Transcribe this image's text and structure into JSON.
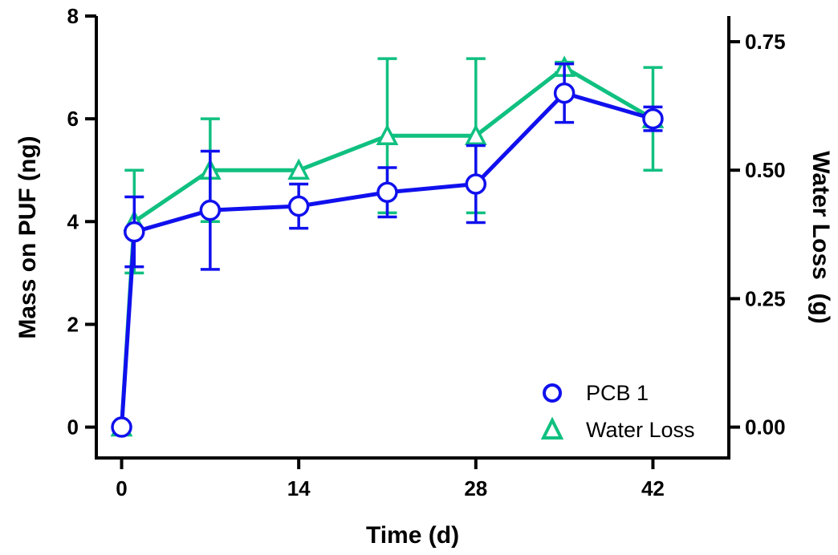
{
  "chart_data": {
    "type": "line",
    "xlabel": "Time (d)",
    "ylabel": "Mass on PUF (ng)",
    "y2label": "Water Loss  (g)",
    "xlim": [
      -2,
      48
    ],
    "ylim": [
      -0.6,
      8
    ],
    "y2lim": [
      -0.06,
      0.8
    ],
    "x_ticks": [
      0,
      14,
      28,
      42
    ],
    "x_tick_labels": [
      "0",
      "14",
      "28",
      "42"
    ],
    "y_ticks": [
      0,
      2,
      4,
      6,
      8
    ],
    "y_tick_labels": [
      "0",
      "2",
      "4",
      "6",
      "8"
    ],
    "y2_ticks": [
      0,
      0.25,
      0.5,
      0.75
    ],
    "y2_tick_labels": [
      "0.00",
      "0.25",
      "0.50",
      "0.75"
    ],
    "grid": false,
    "legend_position": "bottom-right",
    "series": [
      {
        "name": "PCB 1",
        "axis": "left",
        "marker": "circle",
        "color": "#1010ee",
        "x": [
          0,
          1,
          7,
          14,
          21,
          28,
          35,
          42
        ],
        "y": [
          0,
          3.8,
          4.22,
          4.3,
          4.57,
          4.73,
          6.5,
          6.0
        ],
        "error": [
          0,
          0.68,
          1.15,
          0.43,
          0.48,
          0.75,
          0.57,
          0.23
        ]
      },
      {
        "name": "Water Loss",
        "axis": "right",
        "marker": "triangle",
        "color": "#10c080",
        "x": [
          0,
          1,
          7,
          14,
          21,
          28,
          35,
          42
        ],
        "y": [
          0,
          0.4,
          0.5,
          0.5,
          0.567,
          0.567,
          0.7,
          0.6
        ],
        "error": [
          0,
          0.1,
          0.1,
          0,
          0.15,
          0.15,
          0.01,
          0.1
        ]
      }
    ]
  }
}
